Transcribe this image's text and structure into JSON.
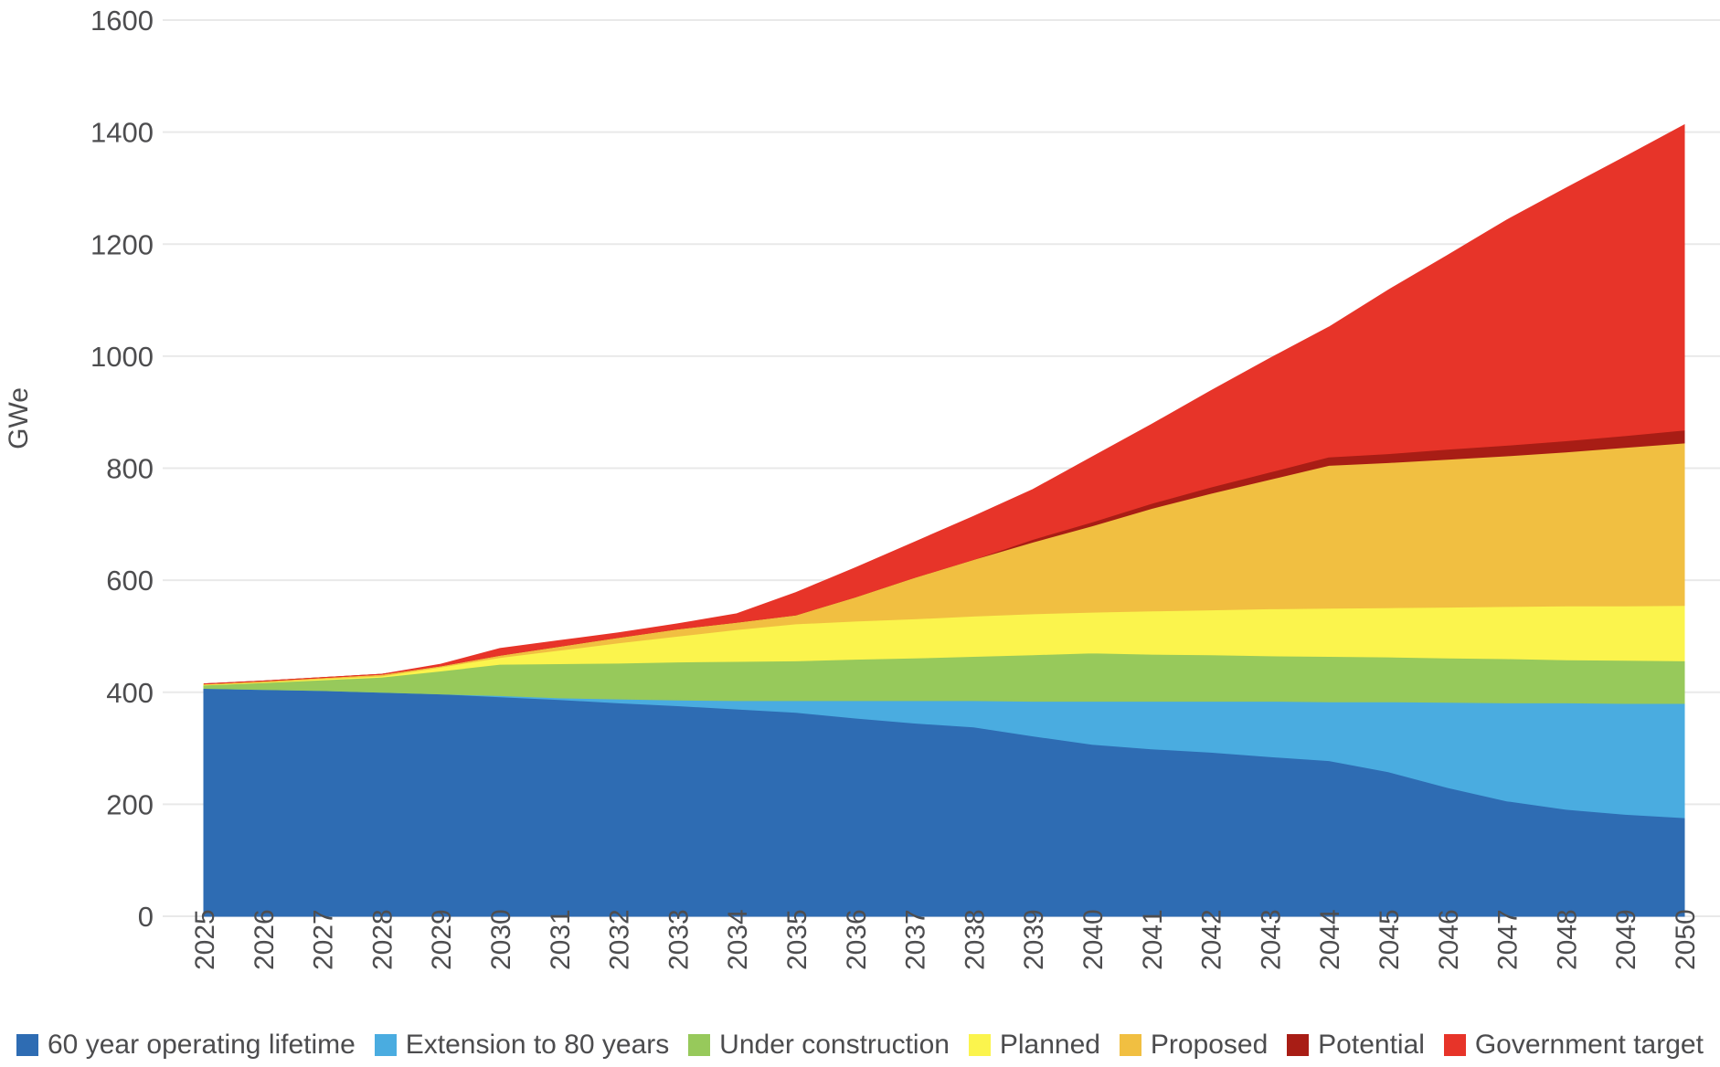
{
  "chart": {
    "ylabel": "GWe",
    "y_ticks": [
      0,
      200,
      400,
      600,
      800,
      1000,
      1200,
      1400,
      1600
    ],
    "x_ticks": [
      "2025",
      "2026",
      "2027",
      "2028",
      "2029",
      "2030",
      "2031",
      "2032",
      "2033",
      "2034",
      "2035",
      "2036",
      "2037",
      "2038",
      "2039",
      "2040",
      "2041",
      "2042",
      "2043",
      "2044",
      "2045",
      "2046",
      "2047",
      "2048",
      "2049",
      "2050"
    ],
    "grid_color": "#e9e9e9",
    "text_color": "#4d4d4f"
  },
  "chart_data": {
    "type": "area",
    "stacked": true,
    "title": "",
    "xlabel": "",
    "ylabel": "GWe",
    "ylim": [
      0,
      1600
    ],
    "grid": true,
    "legend_position": "bottom",
    "x": [
      2025,
      2026,
      2027,
      2028,
      2029,
      2030,
      2031,
      2032,
      2033,
      2034,
      2035,
      2036,
      2037,
      2038,
      2039,
      2040,
      2041,
      2042,
      2043,
      2044,
      2045,
      2046,
      2047,
      2048,
      2049,
      2050
    ],
    "series": [
      {
        "name": "60 year operating lifetime",
        "color": "#2e6cb3",
        "values": [
          407,
          405,
          403,
          400,
          397,
          392,
          387,
          381,
          376,
          370,
          364,
          354,
          345,
          338,
          322,
          307,
          299,
          293,
          285,
          278,
          258,
          230,
          206,
          191,
          182,
          176
        ]
      },
      {
        "name": "Extension to 80 years",
        "color": "#4aace0",
        "values": [
          0,
          0,
          0,
          0,
          0,
          2,
          3,
          7,
          10,
          15,
          21,
          31,
          40,
          47,
          62,
          77,
          85,
          91,
          99,
          105,
          125,
          152,
          175,
          190,
          198,
          204
        ]
      },
      {
        "name": "Under construction",
        "color": "#97c95b",
        "values": [
          6,
          12,
          19,
          27,
          41,
          56,
          61,
          64,
          68,
          70,
          71,
          74,
          76,
          79,
          83,
          86,
          84,
          83,
          81,
          81,
          80,
          79,
          79,
          77,
          77,
          76
        ]
      },
      {
        "name": "Planned",
        "color": "#fbf44d",
        "values": [
          1,
          1,
          2,
          2,
          7,
          12,
          24,
          36,
          46,
          57,
          66,
          68,
          70,
          72,
          73,
          73,
          77,
          80,
          84,
          86,
          88,
          91,
          93,
          96,
          97,
          99
        ]
      },
      {
        "name": "Proposed",
        "color": "#f1bf41",
        "values": [
          1,
          2,
          2,
          3,
          2,
          4,
          7,
          10,
          13,
          13,
          16,
          43,
          74,
          101,
          128,
          154,
          183,
          208,
          231,
          255,
          259,
          264,
          269,
          275,
          283,
          290
        ]
      },
      {
        "name": "Potential",
        "color": "#a81d15",
        "values": [
          0,
          0,
          0,
          0,
          0,
          0,
          0,
          0,
          0,
          0,
          0,
          0,
          0,
          0,
          5,
          7,
          9,
          11,
          13,
          15,
          16,
          18,
          19,
          20,
          21,
          23
        ]
      },
      {
        "name": "Government target",
        "color": "#e73429",
        "values": [
          0,
          0,
          0,
          0,
          3,
          12,
          10,
          8,
          9,
          15,
          40,
          52,
          63,
          77,
          89,
          116,
          141,
          172,
          203,
          232,
          292,
          346,
          402,
          451,
          498,
          545
        ]
      }
    ]
  }
}
